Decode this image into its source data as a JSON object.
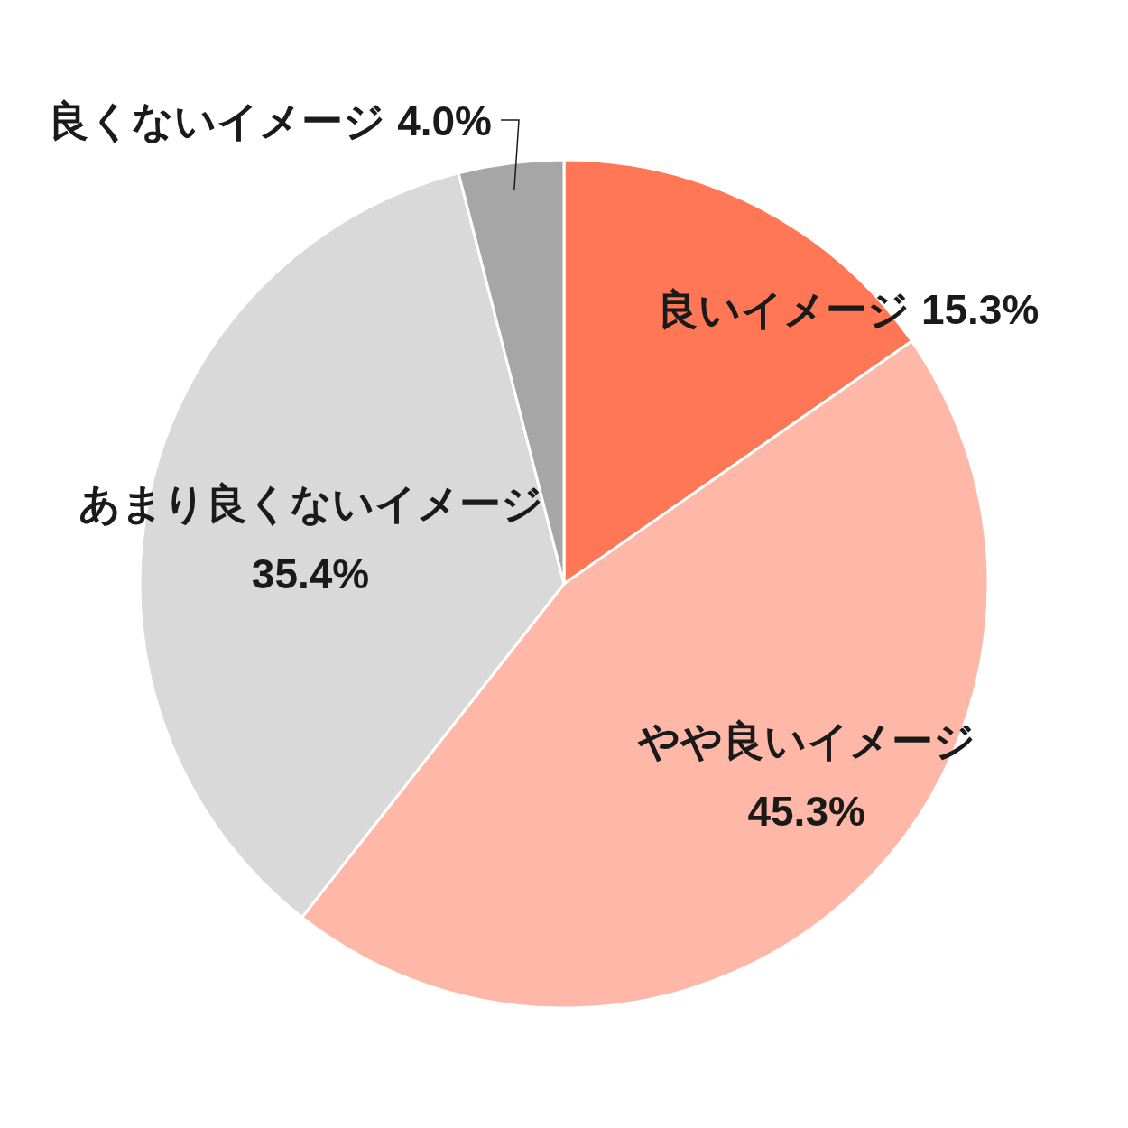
{
  "chart_data": {
    "type": "pie",
    "categories": [
      "良いイメージ",
      "やや良いイメージ",
      "あまり良くないイメージ",
      "良くないイメージ"
    ],
    "values": [
      15.3,
      45.3,
      35.4,
      4.0
    ],
    "value_labels": [
      "15.3%",
      "45.3%",
      "35.4%",
      "4.0%"
    ],
    "colors": [
      "#ff7755",
      "#ffb8a8",
      "#d9d9d9",
      "#a6a6a6"
    ]
  }
}
